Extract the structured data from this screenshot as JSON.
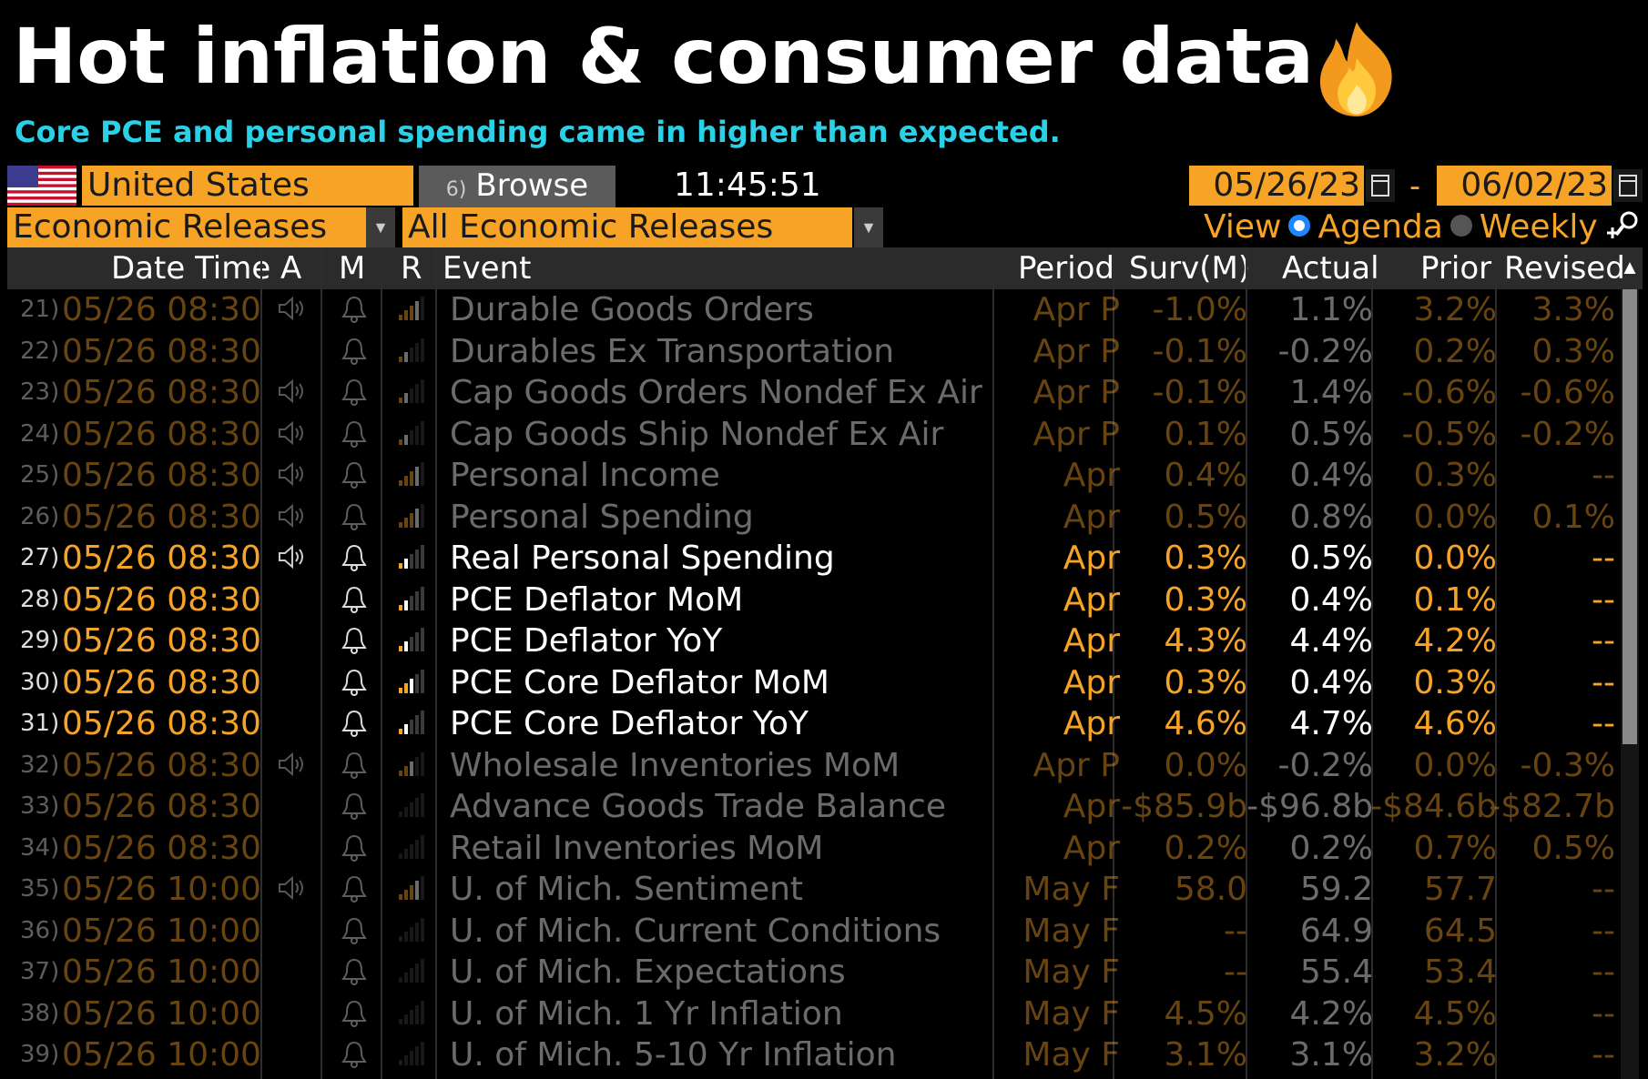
{
  "headline": "Hot inflation & consumer data",
  "subtitle": "Core PCE and personal spending came in higher than expected.",
  "toolbar": {
    "country": "United States",
    "browse_label": "Browse",
    "browse_hint": "6)",
    "time": "11:45:51",
    "date_from": "05/26/23",
    "date_to": "06/02/23",
    "date_sep": "-",
    "category": "Economic Releases",
    "filter": "All Economic Releases",
    "view_label": "View",
    "view_agenda": "Agenda",
    "view_weekly": "Weekly"
  },
  "columns": {
    "datetime": "Date Time",
    "a": "A",
    "m": "M",
    "r": "R",
    "event": "Event",
    "period": "Period",
    "survey": "Surv(M)",
    "actual": "Actual",
    "prior": "Prior",
    "revised": "Revised"
  },
  "rows": [
    {
      "idx": "21)",
      "dt": "05/26 08:30",
      "speaker": true,
      "rel": 4,
      "event": "Durable Goods Orders",
      "period": "Apr P",
      "survey": "-1.0%",
      "actual": "1.1%",
      "prior": "3.2%",
      "revised": "3.3%",
      "hl": false
    },
    {
      "idx": "22)",
      "dt": "05/26 08:30",
      "speaker": false,
      "rel": 2,
      "event": "Durables Ex Transportation",
      "period": "Apr P",
      "survey": "-0.1%",
      "actual": "-0.2%",
      "prior": "0.2%",
      "revised": "0.3%",
      "hl": false
    },
    {
      "idx": "23)",
      "dt": "05/26 08:30",
      "speaker": true,
      "rel": 2,
      "event": "Cap Goods Orders Nondef Ex Air",
      "period": "Apr P",
      "survey": "-0.1%",
      "actual": "1.4%",
      "prior": "-0.6%",
      "revised": "-0.6%",
      "hl": false
    },
    {
      "idx": "24)",
      "dt": "05/26 08:30",
      "speaker": true,
      "rel": 2,
      "event": "Cap Goods Ship Nondef Ex Air",
      "period": "Apr P",
      "survey": "0.1%",
      "actual": "0.5%",
      "prior": "-0.5%",
      "revised": "-0.2%",
      "hl": false
    },
    {
      "idx": "25)",
      "dt": "05/26 08:30",
      "speaker": true,
      "rel": 4,
      "event": "Personal Income",
      "period": "Apr",
      "survey": "0.4%",
      "actual": "0.4%",
      "prior": "0.3%",
      "revised": "--",
      "hl": false
    },
    {
      "idx": "26)",
      "dt": "05/26 08:30",
      "speaker": true,
      "rel": 4,
      "event": "Personal Spending",
      "period": "Apr",
      "survey": "0.5%",
      "actual": "0.8%",
      "prior": "0.0%",
      "revised": "0.1%",
      "hl": false
    },
    {
      "idx": "27)",
      "dt": "05/26 08:30",
      "speaker": true,
      "rel": 2,
      "event": "Real Personal Spending",
      "period": "Apr",
      "survey": "0.3%",
      "actual": "0.5%",
      "prior": "0.0%",
      "revised": "--",
      "hl": true
    },
    {
      "idx": "28)",
      "dt": "05/26 08:30",
      "speaker": false,
      "rel": 2,
      "event": "PCE Deflator MoM",
      "period": "Apr",
      "survey": "0.3%",
      "actual": "0.4%",
      "prior": "0.1%",
      "revised": "--",
      "hl": true
    },
    {
      "idx": "29)",
      "dt": "05/26 08:30",
      "speaker": false,
      "rel": 2,
      "event": "PCE Deflator YoY",
      "period": "Apr",
      "survey": "4.3%",
      "actual": "4.4%",
      "prior": "4.2%",
      "revised": "--",
      "hl": true
    },
    {
      "idx": "30)",
      "dt": "05/26 08:30",
      "speaker": false,
      "rel": 3,
      "event": "PCE Core Deflator MoM",
      "period": "Apr",
      "survey": "0.3%",
      "actual": "0.4%",
      "prior": "0.3%",
      "revised": "--",
      "hl": true
    },
    {
      "idx": "31)",
      "dt": "05/26 08:30",
      "speaker": false,
      "rel": 2,
      "event": "PCE Core Deflator YoY",
      "period": "Apr",
      "survey": "4.6%",
      "actual": "4.7%",
      "prior": "4.6%",
      "revised": "--",
      "hl": true
    },
    {
      "idx": "32)",
      "dt": "05/26 08:30",
      "speaker": true,
      "rel": 3,
      "event": "Wholesale Inventories MoM",
      "period": "Apr P",
      "survey": "0.0%",
      "actual": "-0.2%",
      "prior": "0.0%",
      "revised": "-0.3%",
      "hl": false
    },
    {
      "idx": "33)",
      "dt": "05/26 08:30",
      "speaker": false,
      "rel": 0,
      "event": "Advance Goods Trade Balance",
      "period": "Apr",
      "survey": "-$85.9b",
      "actual": "-$96.8b",
      "prior": "-$84.6b",
      "revised": "-$82.7b",
      "hl": false
    },
    {
      "idx": "34)",
      "dt": "05/26 08:30",
      "speaker": false,
      "rel": 0,
      "event": "Retail Inventories MoM",
      "period": "Apr",
      "survey": "0.2%",
      "actual": "0.2%",
      "prior": "0.7%",
      "revised": "0.5%",
      "hl": false
    },
    {
      "idx": "35)",
      "dt": "05/26 10:00",
      "speaker": true,
      "rel": 4,
      "event": "U. of Mich. Sentiment",
      "period": "May F",
      "survey": "58.0",
      "actual": "59.2",
      "prior": "57.7",
      "revised": "--",
      "hl": false
    },
    {
      "idx": "36)",
      "dt": "05/26 10:00",
      "speaker": false,
      "rel": 0,
      "event": "U. of Mich. Current Conditions",
      "period": "May F",
      "survey": "--",
      "actual": "64.9",
      "prior": "64.5",
      "revised": "--",
      "hl": false
    },
    {
      "idx": "37)",
      "dt": "05/26 10:00",
      "speaker": false,
      "rel": 0,
      "event": "U. of Mich. Expectations",
      "period": "May F",
      "survey": "--",
      "actual": "55.4",
      "prior": "53.4",
      "revised": "--",
      "hl": false
    },
    {
      "idx": "38)",
      "dt": "05/26 10:00",
      "speaker": false,
      "rel": 0,
      "event": "U. of Mich. 1 Yr Inflation",
      "period": "May F",
      "survey": "4.5%",
      "actual": "4.2%",
      "prior": "4.5%",
      "revised": "--",
      "hl": false
    },
    {
      "idx": "39)",
      "dt": "05/26 10:00",
      "speaker": false,
      "rel": 0,
      "event": "U. of Mich. 5-10 Yr Inflation",
      "period": "May F",
      "survey": "3.1%",
      "actual": "3.1%",
      "prior": "3.2%",
      "revised": "--",
      "hl": false
    }
  ],
  "colors": {
    "accent": "#f7a326",
    "subtitle": "#2ad0e6",
    "radio": "#1e86ff"
  }
}
